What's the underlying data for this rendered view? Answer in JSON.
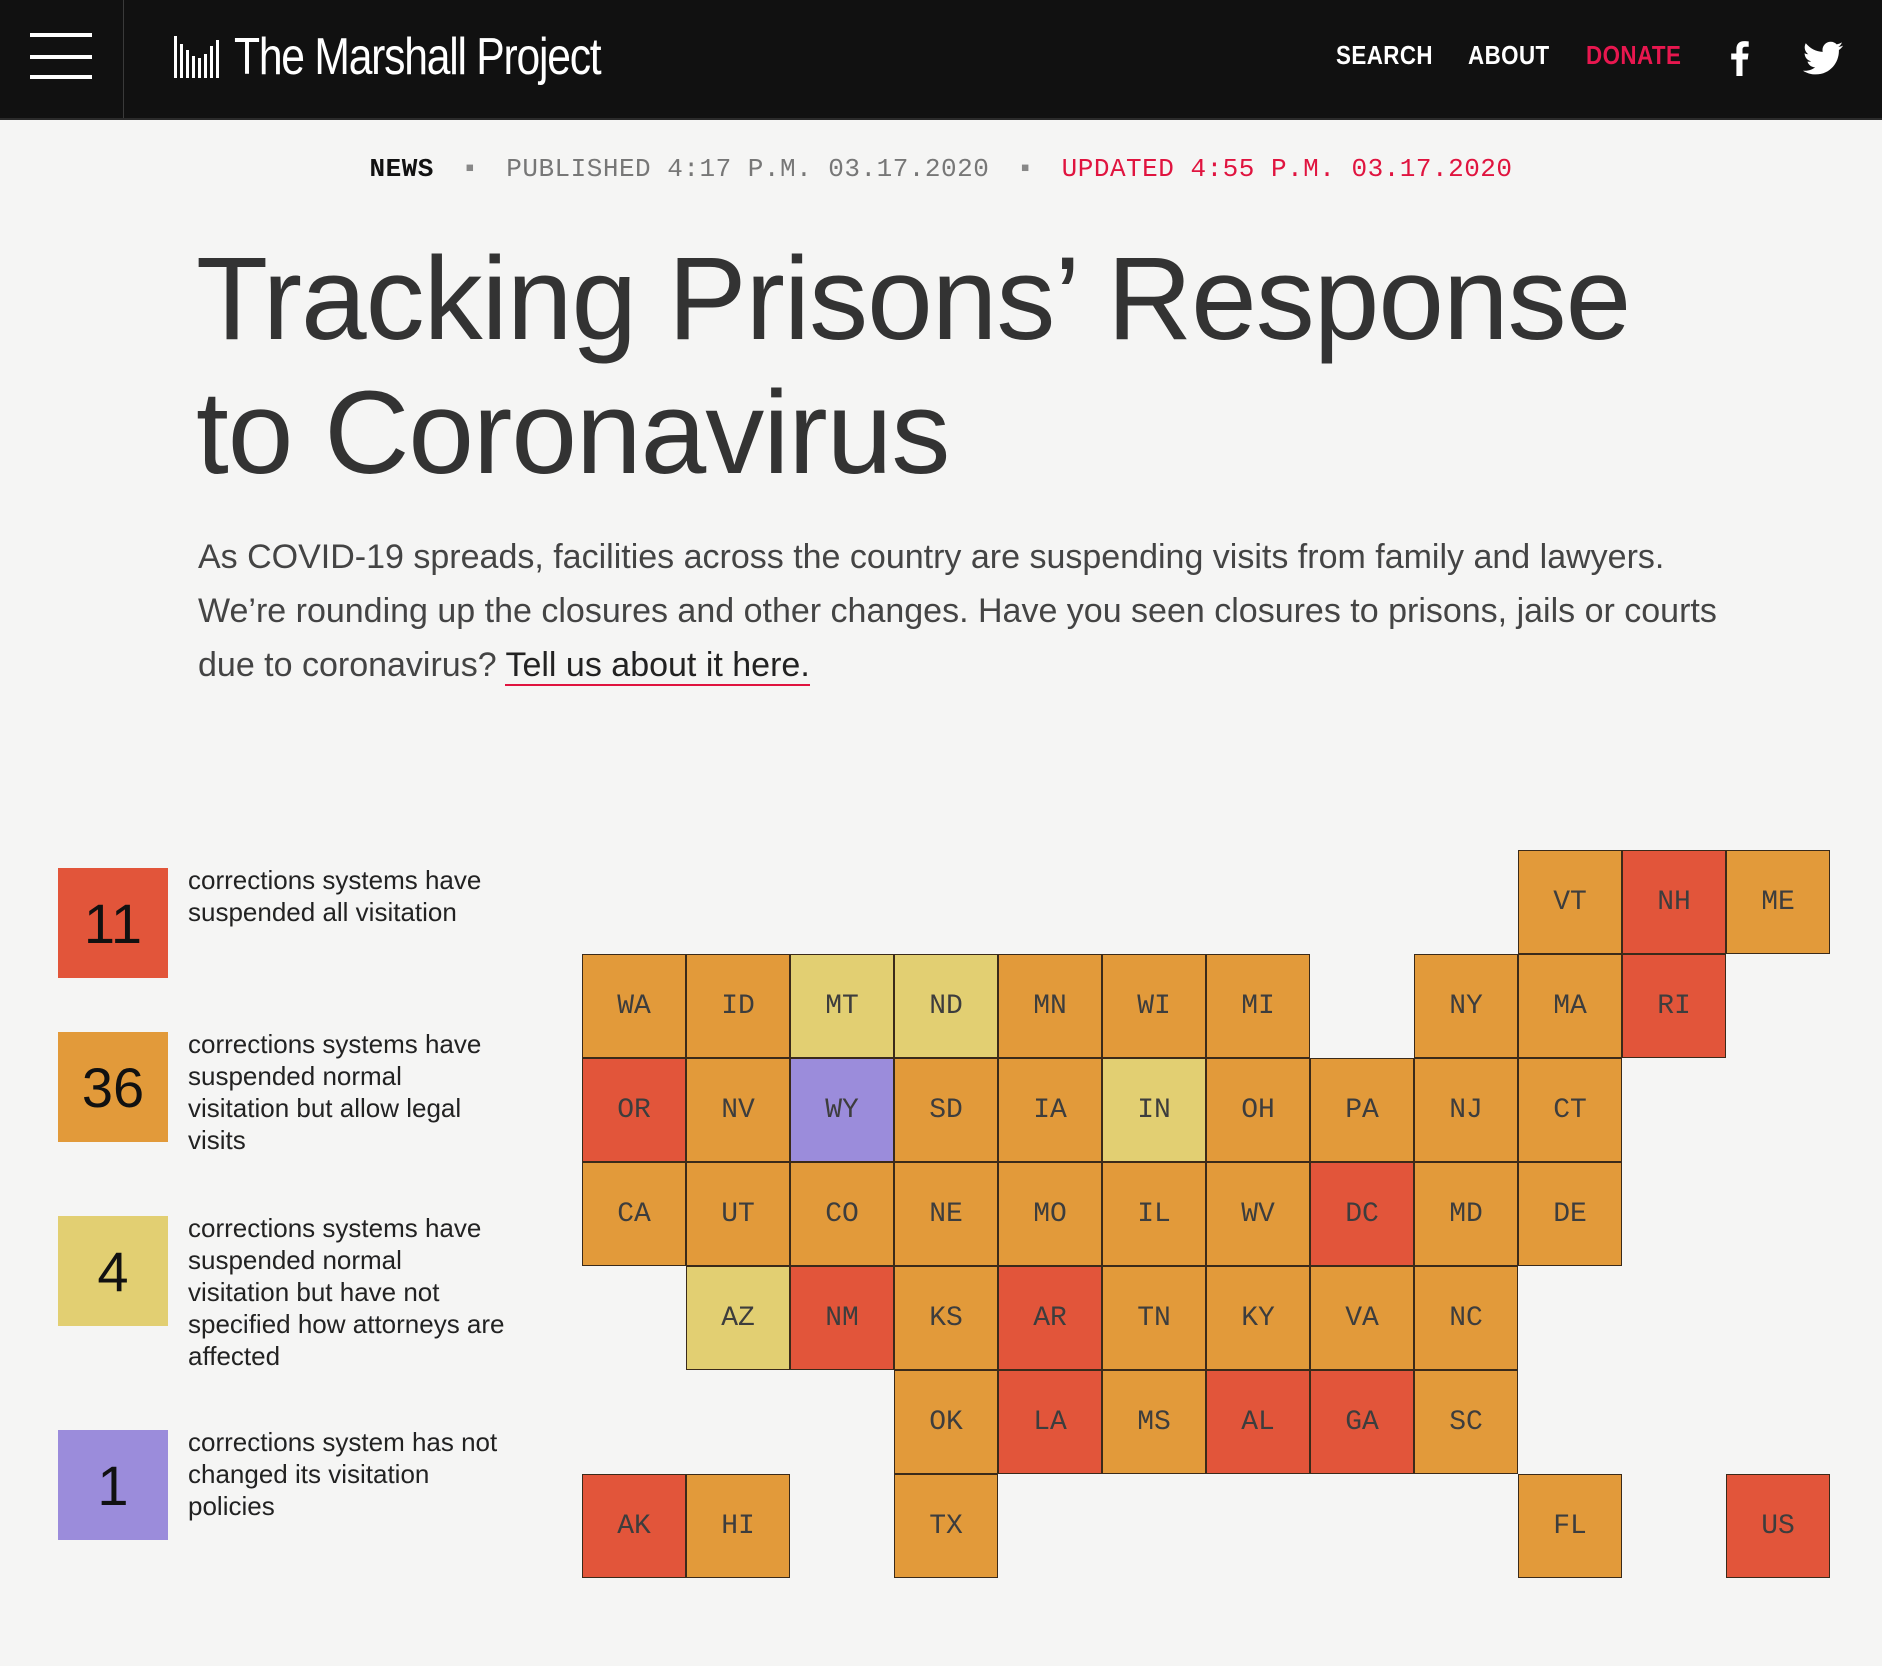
{
  "nav": {
    "site_name": "The Marshall Project",
    "search": "SEARCH",
    "about": "ABOUT",
    "donate": "DONATE"
  },
  "meta": {
    "kind": "NEWS",
    "published": "PUBLISHED 4:17 P.M. 03.17.2020",
    "updated": "UPDATED 4:55 P.M. 03.17.2020"
  },
  "article": {
    "title_line1": "Tracking Prisons’ Response",
    "title_line2": "to Coronavirus",
    "dek_text": "As COVID-19 spreads, facilities across the country are suspending visits from family and lawyers. We’re rounding up the closures and other changes. Have you seen closures to prisons, jails or courts due to coronavirus? ",
    "dek_link": "Tell us about it here."
  },
  "colors": {
    "all_suspended": "#e2553a",
    "legal_allowed": "#e29a3a",
    "unspecified": "#e2cf72",
    "unchanged": "#9b8cdb",
    "accent": "#e0143f"
  },
  "legend": [
    {
      "count": "11",
      "category": "all_suspended",
      "text": "corrections systems have suspended all visitation"
    },
    {
      "count": "36",
      "category": "legal_allowed",
      "text": "corrections systems have suspended normal visitation but allow legal visits"
    },
    {
      "count": "4",
      "category": "unspecified",
      "text": "corrections systems have suspended normal visitation but have not specified how attorneys are affected"
    },
    {
      "count": "1",
      "category": "unchanged",
      "text": "corrections system has not changed its visitation policies"
    }
  ],
  "tiles": [
    {
      "state": "VT",
      "row": 0,
      "col": 9,
      "category": "legal_allowed"
    },
    {
      "state": "NH",
      "row": 0,
      "col": 10,
      "category": "all_suspended"
    },
    {
      "state": "ME",
      "row": 0,
      "col": 11,
      "category": "legal_allowed"
    },
    {
      "state": "WA",
      "row": 1,
      "col": 0,
      "category": "legal_allowed"
    },
    {
      "state": "ID",
      "row": 1,
      "col": 1,
      "category": "legal_allowed"
    },
    {
      "state": "MT",
      "row": 1,
      "col": 2,
      "category": "unspecified"
    },
    {
      "state": "ND",
      "row": 1,
      "col": 3,
      "category": "unspecified"
    },
    {
      "state": "MN",
      "row": 1,
      "col": 4,
      "category": "legal_allowed"
    },
    {
      "state": "WI",
      "row": 1,
      "col": 5,
      "category": "legal_allowed"
    },
    {
      "state": "MI",
      "row": 1,
      "col": 6,
      "category": "legal_allowed"
    },
    {
      "state": "NY",
      "row": 1,
      "col": 8,
      "category": "legal_allowed"
    },
    {
      "state": "MA",
      "row": 1,
      "col": 9,
      "category": "legal_allowed"
    },
    {
      "state": "RI",
      "row": 1,
      "col": 10,
      "category": "all_suspended"
    },
    {
      "state": "OR",
      "row": 2,
      "col": 0,
      "category": "all_suspended"
    },
    {
      "state": "NV",
      "row": 2,
      "col": 1,
      "category": "legal_allowed"
    },
    {
      "state": "WY",
      "row": 2,
      "col": 2,
      "category": "unchanged"
    },
    {
      "state": "SD",
      "row": 2,
      "col": 3,
      "category": "legal_allowed"
    },
    {
      "state": "IA",
      "row": 2,
      "col": 4,
      "category": "legal_allowed"
    },
    {
      "state": "IN",
      "row": 2,
      "col": 5,
      "category": "unspecified"
    },
    {
      "state": "OH",
      "row": 2,
      "col": 6,
      "category": "legal_allowed"
    },
    {
      "state": "PA",
      "row": 2,
      "col": 7,
      "category": "legal_allowed"
    },
    {
      "state": "NJ",
      "row": 2,
      "col": 8,
      "category": "legal_allowed"
    },
    {
      "state": "CT",
      "row": 2,
      "col": 9,
      "category": "legal_allowed"
    },
    {
      "state": "CA",
      "row": 3,
      "col": 0,
      "category": "legal_allowed"
    },
    {
      "state": "UT",
      "row": 3,
      "col": 1,
      "category": "legal_allowed"
    },
    {
      "state": "CO",
      "row": 3,
      "col": 2,
      "category": "legal_allowed"
    },
    {
      "state": "NE",
      "row": 3,
      "col": 3,
      "category": "legal_allowed"
    },
    {
      "state": "MO",
      "row": 3,
      "col": 4,
      "category": "legal_allowed"
    },
    {
      "state": "IL",
      "row": 3,
      "col": 5,
      "category": "legal_allowed"
    },
    {
      "state": "WV",
      "row": 3,
      "col": 6,
      "category": "legal_allowed"
    },
    {
      "state": "DC",
      "row": 3,
      "col": 7,
      "category": "all_suspended"
    },
    {
      "state": "MD",
      "row": 3,
      "col": 8,
      "category": "legal_allowed"
    },
    {
      "state": "DE",
      "row": 3,
      "col": 9,
      "category": "legal_allowed"
    },
    {
      "state": "AZ",
      "row": 4,
      "col": 1,
      "category": "unspecified"
    },
    {
      "state": "NM",
      "row": 4,
      "col": 2,
      "category": "all_suspended"
    },
    {
      "state": "KS",
      "row": 4,
      "col": 3,
      "category": "legal_allowed"
    },
    {
      "state": "AR",
      "row": 4,
      "col": 4,
      "category": "all_suspended"
    },
    {
      "state": "TN",
      "row": 4,
      "col": 5,
      "category": "legal_allowed"
    },
    {
      "state": "KY",
      "row": 4,
      "col": 6,
      "category": "legal_allowed"
    },
    {
      "state": "VA",
      "row": 4,
      "col": 7,
      "category": "legal_allowed"
    },
    {
      "state": "NC",
      "row": 4,
      "col": 8,
      "category": "legal_allowed"
    },
    {
      "state": "OK",
      "row": 5,
      "col": 3,
      "category": "legal_allowed"
    },
    {
      "state": "LA",
      "row": 5,
      "col": 4,
      "category": "all_suspended"
    },
    {
      "state": "MS",
      "row": 5,
      "col": 5,
      "category": "legal_allowed"
    },
    {
      "state": "AL",
      "row": 5,
      "col": 6,
      "category": "all_suspended"
    },
    {
      "state": "GA",
      "row": 5,
      "col": 7,
      "category": "all_suspended"
    },
    {
      "state": "SC",
      "row": 5,
      "col": 8,
      "category": "legal_allowed"
    },
    {
      "state": "AK",
      "row": 6,
      "col": 0,
      "category": "all_suspended"
    },
    {
      "state": "HI",
      "row": 6,
      "col": 1,
      "category": "legal_allowed"
    },
    {
      "state": "TX",
      "row": 6,
      "col": 3,
      "category": "legal_allowed"
    },
    {
      "state": "FL",
      "row": 6,
      "col": 9,
      "category": "legal_allowed"
    },
    {
      "state": "US",
      "row": 6,
      "col": 11,
      "category": "all_suspended"
    }
  ]
}
